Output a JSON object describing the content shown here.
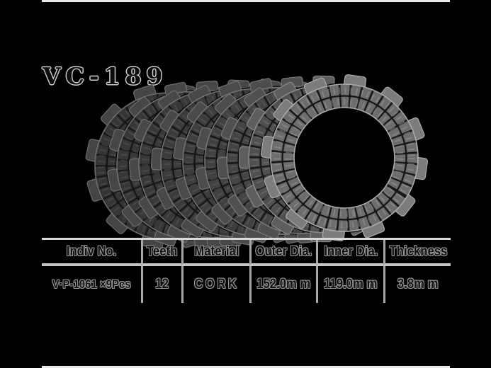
{
  "page": {
    "title": "VC-189",
    "background_color": "#000000",
    "table_line_color": "#c6c6c6",
    "text_outline_color": "#9d9d9d"
  },
  "figure": {
    "name": "clutch-friction-plate-stack-photo",
    "plate_count": 9,
    "tabs_per_plate": 12,
    "plate_dark_color": "#3a3a3a",
    "plate_light_color": "#6d6d6d"
  },
  "table": {
    "headers": [
      "Indiv No.",
      "Teeth",
      "Material",
      "Outer Dia.",
      "Inner Dia.",
      "Thickness"
    ],
    "rows": [
      [
        "V·P-1061 ×9Pcs",
        "12",
        "CORK",
        "152.0m m",
        "119.0m m",
        "3.8m m"
      ]
    ]
  }
}
